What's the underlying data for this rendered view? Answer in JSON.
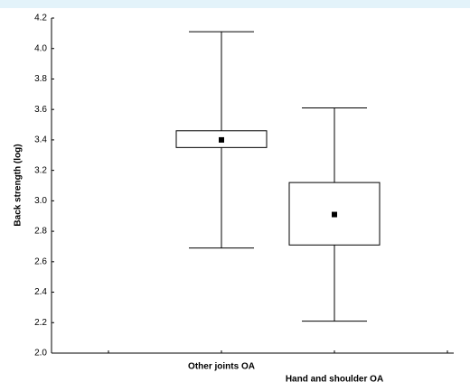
{
  "chart_data": {
    "type": "box",
    "ylabel": "Back strength (log)",
    "categories": [
      "Other joints OA",
      "Hand and shoulder OA"
    ],
    "boxes": [
      {
        "whisker_low": 2.69,
        "q1": 3.35,
        "mean": 3.4,
        "q3": 3.46,
        "whisker_high": 4.11
      },
      {
        "whisker_low": 2.21,
        "q1": 2.71,
        "mean": 2.91,
        "q3": 3.12,
        "whisker_high": 3.61
      }
    ],
    "ylim": [
      2.0,
      4.2
    ],
    "yticks": [
      {
        "value": 2,
        "label": "2.0"
      },
      2.2,
      2.4,
      2.6,
      2.8,
      {
        "value": 3,
        "label": "3.0"
      },
      3.2,
      3.4,
      3.6,
      3.8,
      {
        "value": 4,
        "label": "4.0"
      },
      4.2
    ]
  }
}
